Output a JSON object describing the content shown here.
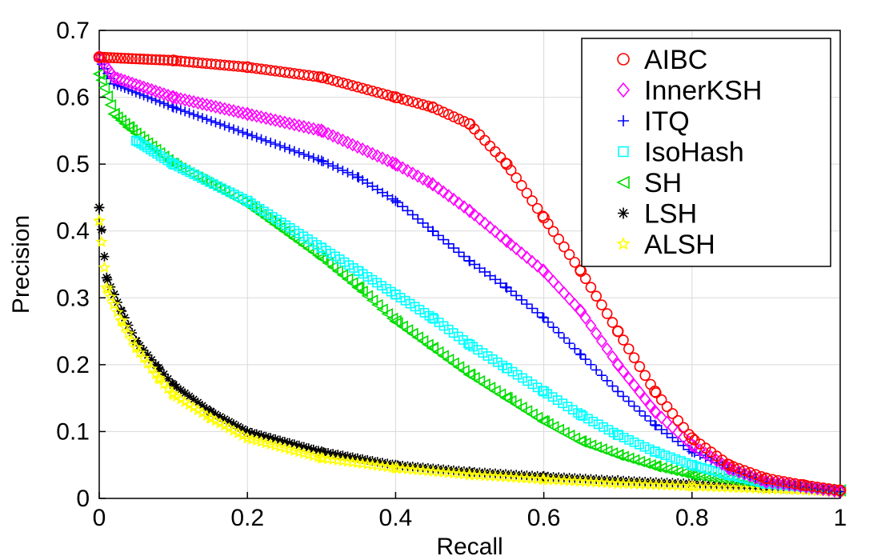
{
  "chart_data": {
    "type": "scatter",
    "title": "",
    "xlabel": "Recall",
    "ylabel": "Precision",
    "xlim": [
      0,
      1
    ],
    "ylim": [
      0,
      0.7
    ],
    "xticks": [
      "0",
      "0.2",
      "0.4",
      "0.6",
      "0.8",
      "1"
    ],
    "yticks": [
      "0",
      "0.1",
      "0.2",
      "0.3",
      "0.4",
      "0.5",
      "0.6",
      "0.7"
    ],
    "grid": true,
    "legend_position": "top-right",
    "series": [
      {
        "name": "AIBC",
        "marker": "circle",
        "color": "#ff0000",
        "points": [
          [
            0.0,
            0.66
          ],
          [
            0.1,
            0.655
          ],
          [
            0.2,
            0.645
          ],
          [
            0.3,
            0.63
          ],
          [
            0.4,
            0.6
          ],
          [
            0.45,
            0.585
          ],
          [
            0.5,
            0.56
          ],
          [
            0.55,
            0.5
          ],
          [
            0.6,
            0.42
          ],
          [
            0.65,
            0.34
          ],
          [
            0.7,
            0.25
          ],
          [
            0.75,
            0.16
          ],
          [
            0.8,
            0.09
          ],
          [
            0.85,
            0.05
          ],
          [
            0.9,
            0.03
          ],
          [
            0.95,
            0.02
          ],
          [
            1.0,
            0.012
          ]
        ]
      },
      {
        "name": "InnerKSH",
        "marker": "diamond",
        "color": "#ff00ff",
        "points": [
          [
            0.0,
            0.66
          ],
          [
            0.02,
            0.63
          ],
          [
            0.1,
            0.6
          ],
          [
            0.2,
            0.575
          ],
          [
            0.3,
            0.55
          ],
          [
            0.4,
            0.5
          ],
          [
            0.45,
            0.47
          ],
          [
            0.5,
            0.43
          ],
          [
            0.55,
            0.385
          ],
          [
            0.6,
            0.34
          ],
          [
            0.65,
            0.28
          ],
          [
            0.7,
            0.2
          ],
          [
            0.75,
            0.13
          ],
          [
            0.8,
            0.08
          ],
          [
            0.85,
            0.045
          ],
          [
            0.9,
            0.025
          ],
          [
            1.0,
            0.01
          ]
        ]
      },
      {
        "name": "ITQ",
        "marker": "plus",
        "color": "#0000ff",
        "points": [
          [
            0.0,
            0.655
          ],
          [
            0.02,
            0.62
          ],
          [
            0.1,
            0.585
          ],
          [
            0.2,
            0.545
          ],
          [
            0.3,
            0.505
          ],
          [
            0.35,
            0.48
          ],
          [
            0.4,
            0.445
          ],
          [
            0.45,
            0.4
          ],
          [
            0.5,
            0.355
          ],
          [
            0.55,
            0.315
          ],
          [
            0.6,
            0.27
          ],
          [
            0.65,
            0.215
          ],
          [
            0.7,
            0.16
          ],
          [
            0.75,
            0.11
          ],
          [
            0.8,
            0.07
          ],
          [
            0.85,
            0.045
          ],
          [
            0.9,
            0.025
          ],
          [
            1.0,
            0.01
          ]
        ]
      },
      {
        "name": "IsoHash",
        "marker": "square",
        "color": "#00ffff",
        "points": [
          [
            0.05,
            0.535
          ],
          [
            0.1,
            0.5
          ],
          [
            0.2,
            0.445
          ],
          [
            0.3,
            0.375
          ],
          [
            0.35,
            0.34
          ],
          [
            0.4,
            0.305
          ],
          [
            0.45,
            0.27
          ],
          [
            0.5,
            0.23
          ],
          [
            0.55,
            0.195
          ],
          [
            0.6,
            0.16
          ],
          [
            0.65,
            0.125
          ],
          [
            0.7,
            0.095
          ],
          [
            0.75,
            0.07
          ],
          [
            0.8,
            0.05
          ],
          [
            0.85,
            0.035
          ],
          [
            0.9,
            0.022
          ],
          [
            1.0,
            0.012
          ]
        ]
      },
      {
        "name": "SH",
        "marker": "triangle-left",
        "color": "#00dd00",
        "points": [
          [
            0.0,
            0.635
          ],
          [
            0.02,
            0.575
          ],
          [
            0.04,
            0.555
          ],
          [
            0.1,
            0.5
          ],
          [
            0.2,
            0.44
          ],
          [
            0.3,
            0.36
          ],
          [
            0.35,
            0.315
          ],
          [
            0.4,
            0.265
          ],
          [
            0.45,
            0.225
          ],
          [
            0.5,
            0.185
          ],
          [
            0.55,
            0.15
          ],
          [
            0.6,
            0.115
          ],
          [
            0.65,
            0.085
          ],
          [
            0.7,
            0.065
          ],
          [
            0.75,
            0.048
          ],
          [
            0.8,
            0.035
          ],
          [
            0.9,
            0.022
          ],
          [
            1.0,
            0.012
          ]
        ]
      },
      {
        "name": "LSH",
        "marker": "asterisk",
        "color": "#000000",
        "points": [
          [
            0.0,
            0.435
          ],
          [
            0.01,
            0.33
          ],
          [
            0.02,
            0.305
          ],
          [
            0.03,
            0.28
          ],
          [
            0.05,
            0.235
          ],
          [
            0.08,
            0.195
          ],
          [
            0.1,
            0.17
          ],
          [
            0.15,
            0.13
          ],
          [
            0.2,
            0.1
          ],
          [
            0.3,
            0.07
          ],
          [
            0.4,
            0.05
          ],
          [
            0.5,
            0.04
          ],
          [
            0.6,
            0.033
          ],
          [
            0.7,
            0.027
          ],
          [
            0.8,
            0.022
          ],
          [
            0.9,
            0.016
          ],
          [
            1.0,
            0.012
          ]
        ]
      },
      {
        "name": "ALSH",
        "marker": "star",
        "color": "#ffff00",
        "points": [
          [
            0.0,
            0.415
          ],
          [
            0.01,
            0.315
          ],
          [
            0.02,
            0.29
          ],
          [
            0.03,
            0.265
          ],
          [
            0.05,
            0.225
          ],
          [
            0.08,
            0.18
          ],
          [
            0.1,
            0.155
          ],
          [
            0.15,
            0.12
          ],
          [
            0.2,
            0.09
          ],
          [
            0.3,
            0.06
          ],
          [
            0.4,
            0.045
          ],
          [
            0.5,
            0.035
          ],
          [
            0.6,
            0.028
          ],
          [
            0.7,
            0.022
          ],
          [
            0.8,
            0.018
          ],
          [
            0.9,
            0.014
          ],
          [
            1.0,
            0.01
          ]
        ]
      }
    ]
  }
}
